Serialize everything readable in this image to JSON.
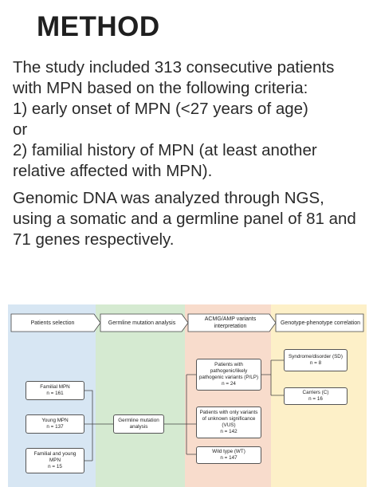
{
  "title": "METHOD",
  "paragraphs": {
    "intro": "The study included 313 consecutive patients with MPN based on the following criteria:",
    "crit1": "1) early onset of MPN (<27 years of age)",
    "or": "or",
    "crit2": "2) familial history of MPN (at least another relative affected with MPN).",
    "genomic": "Genomic DNA was analyzed through NGS, using a somatic and a germline panel of 81 and 71 genes respectively."
  },
  "diagram": {
    "colors": {
      "col1": "#d7e6f3",
      "col2": "#d5ead1",
      "col3": "#f8dccc",
      "col4": "#fdf0c8"
    },
    "headers": {
      "h1": "Patients selection",
      "h2": "Germline mutation analysis",
      "h3": "ACMG/AMP variants interpretation",
      "h4": "Genotype-phenotype correlation"
    },
    "selection": [
      {
        "label": "Familial MPN",
        "n": "n = 161"
      },
      {
        "label": "Young MPN",
        "n": "n = 137"
      },
      {
        "label": "Familial and young MPN",
        "n": "n = 15"
      }
    ],
    "analysis": {
      "label": "Germline mutation analysis"
    },
    "variants": [
      {
        "label": "Patients with pathogenic/likely pathogenic variants (P/LP)",
        "n": "n = 24"
      },
      {
        "label": "Patients with only variants of unknown significance (VUS)",
        "n": "n = 142"
      },
      {
        "label": "Wild type (WT)",
        "n": "n = 147"
      }
    ],
    "phenotype": [
      {
        "label": "Syndrome/disorder (SD)",
        "n": "n = 8"
      },
      {
        "label": "Carriers (C)",
        "n": "n = 16"
      }
    ]
  }
}
